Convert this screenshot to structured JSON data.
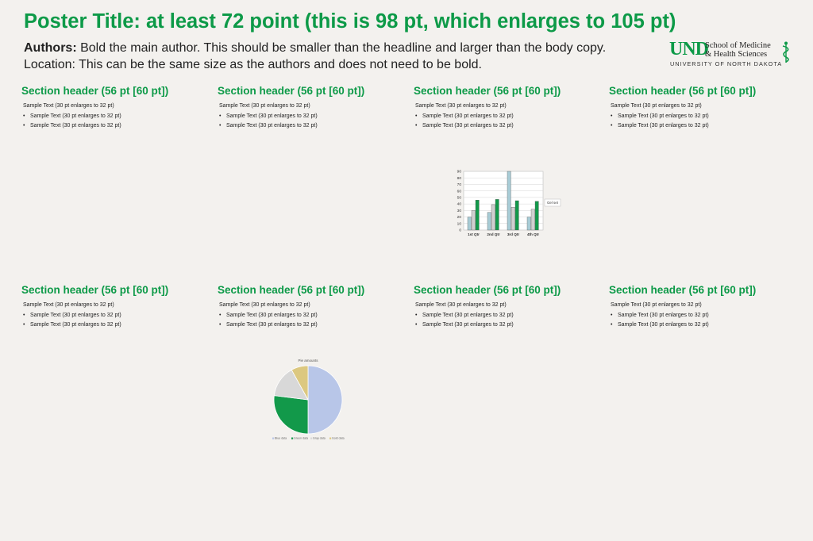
{
  "header": {
    "title": "Poster Title: at least 72 point (this is 98 pt, which enlarges to 105 pt)",
    "authors_label": "Authors:",
    "authors_text": " Bold the main author. This should be smaller than the headline and larger than the body copy.",
    "location": "Location: This can be the same size as the authors and does not need to be bold."
  },
  "logo": {
    "und": "UND",
    "line1": "School of Medicine",
    "line2": "& Health Sciences",
    "line3": "UNIVERSITY OF NORTH DAKOTA"
  },
  "sections": [
    {
      "header": "Section header (56 pt [60 pt])",
      "text": "Sample Text (30 pt enlarges to 32 pt)",
      "bullets": [
        "Sample Text (30 pt enlarges to 32 pt)",
        "Sample Text (30 pt enlarges to 32 pt)"
      ]
    },
    {
      "header": "Section header (56 pt [60 pt])",
      "text": "Sample Text (30 pt enlarges to 32 pt)",
      "bullets": [
        "Sample Text (30 pt enlarges to 32 pt)",
        "Sample Text (30 pt enlarges to 32 pt)"
      ]
    },
    {
      "header": "Section header (56 pt [60 pt])",
      "text": "Sample Text (30 pt enlarges to 32 pt)",
      "bullets": [
        "Sample Text (30 pt enlarges to 32 pt)",
        "Sample Text (30 pt enlarges to 32 pt)"
      ]
    },
    {
      "header": "Section header (56 pt [60 pt])",
      "text": "Sample Text (30 pt enlarges to 32 pt)",
      "bullets": [
        "Sample Text (30 pt enlarges to 32 pt)",
        "Sample Text (30 pt enlarges to 32 pt)"
      ]
    },
    {
      "header": "Section header (56 pt [60 pt])",
      "text": "Sample Text (30 pt enlarges to 32 pt)",
      "bullets": [
        "Sample Text (30 pt enlarges to 32 pt)",
        "Sample Text (30 pt enlarges to 32 pt)"
      ]
    },
    {
      "header": "Section header (56 pt [60 pt])",
      "text": "Sample Text (30 pt enlarges to 32 pt)",
      "bullets": [
        "Sample Text (30 pt enlarges to 32 pt)",
        "Sample Text (30 pt enlarges to 32 pt)"
      ]
    },
    {
      "header": "Section header (56 pt [60 pt])",
      "text": "Sample Text (30 pt enlarges to 32 pt)",
      "bullets": [
        "Sample Text (30 pt enlarges to 32 pt)",
        "Sample Text (30 pt enlarges to 32 pt)"
      ]
    },
    {
      "header": "Section header (56 pt [60 pt])",
      "text": "Sample Text (30 pt enlarges to 32 pt)",
      "bullets": [
        "Sample Text (30 pt enlarges to 32 pt)",
        "Sample Text (30 pt enlarges to 32 pt)"
      ]
    }
  ],
  "chart_data": [
    {
      "type": "bar",
      "categories": [
        "1st Qtr",
        "2nd Qtr",
        "3rd Qtr",
        "4th Qtr"
      ],
      "series": [
        {
          "name": "",
          "values": [
            20,
            27,
            90,
            20
          ],
          "color": "#a8ccd6"
        },
        {
          "name": "",
          "values": [
            30,
            39,
            35,
            32
          ],
          "color": "#d0d0d0"
        },
        {
          "name": "",
          "values": [
            46,
            47,
            45,
            44
          ],
          "color": "#12994a"
        }
      ],
      "ylim": [
        0,
        90
      ],
      "yticks": [
        0,
        10,
        20,
        30,
        40,
        50,
        60,
        70,
        80,
        90
      ],
      "legend": "Gel set",
      "legend_placement": "right"
    },
    {
      "type": "pie",
      "title": "Pie amounts",
      "labels": [
        "Blue data",
        "Green data",
        "Gray data",
        "Gold data"
      ],
      "values": [
        50,
        27,
        15,
        8
      ],
      "colors": [
        "#b8c6e8",
        "#12994a",
        "#d8d8d8",
        "#dcc880"
      ],
      "legend_placement": "bottom"
    }
  ]
}
